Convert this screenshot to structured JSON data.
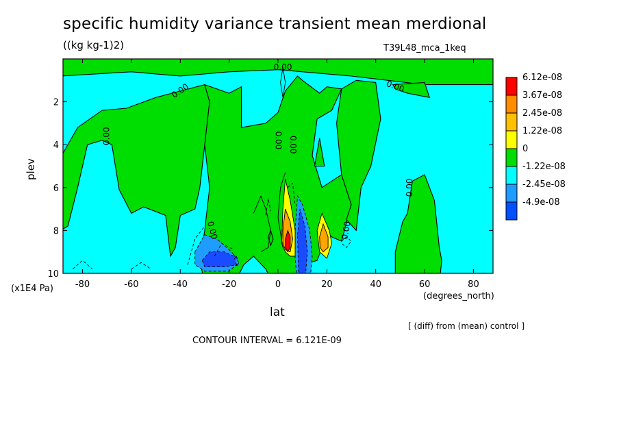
{
  "chart_data": {
    "type": "heatmap",
    "title": "specific humidity variance transient mean merdional",
    "units": "((kg kg-1)2)",
    "run_id": "T39L48_mca_1keq",
    "xlabel": "lat",
    "xlabel_units": "(degrees_north)",
    "ylabel": "plev",
    "ylabel_units": "(x1E4 Pa)",
    "xlim": [
      -88,
      88
    ],
    "ylim": [
      10,
      0
    ],
    "x_ticks": [
      -80,
      -60,
      -40,
      -20,
      0,
      20,
      40,
      60,
      80
    ],
    "x_tick_labels": [
      "-80",
      "-60",
      "-40",
      "-20",
      "0",
      "20",
      "40",
      "60",
      "80"
    ],
    "y_ticks": [
      2,
      4,
      6,
      8,
      10
    ],
    "y_tick_labels": [
      "2",
      "4",
      "6",
      "8",
      "10"
    ],
    "contour_interval_label": "CONTOUR INTERVAL = 6.121E-09",
    "diff_note": "[ (diff) from (mean) control ]",
    "contour_labels": [
      "0.00",
      "0.00",
      "0.00",
      "0.00",
      "0.00",
      "0.00",
      "0.00",
      "0.00",
      "0.00"
    ],
    "colorbar": {
      "labels": [
        "6.12e-08",
        "3.67e-08",
        "2.45e-08",
        "1.22e-08",
        "0",
        "-1.22e-08",
        "-2.45e-08",
        "-4.9e-08"
      ],
      "colors": [
        "#ff0000",
        "#ff8c00",
        "#ffc000",
        "#ffff00",
        "#00dd00",
        "#00ffff",
        "#1e9cff",
        "#0050ff"
      ]
    },
    "region_colors": {
      "background": "#00ffff",
      "zero_band": "#00dd00",
      "neg_weak": "#1e9cff",
      "neg_strong": "#1a4cff",
      "pos_weak": "#ffff00",
      "pos_mid": "#ffa500",
      "pos_strong": "#ff0000"
    }
  }
}
